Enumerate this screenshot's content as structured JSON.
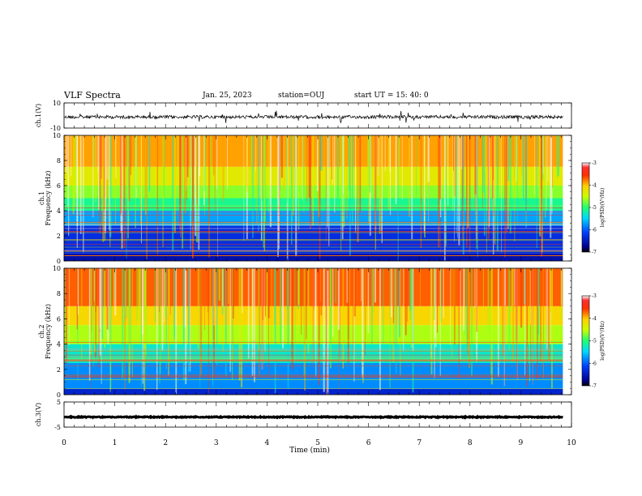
{
  "header": {
    "title": "VLF Spectra",
    "date": "Jan. 25, 2023",
    "station": "station=OUJ",
    "start": "start UT =   15: 40: 0"
  },
  "chart_data": [
    {
      "type": "line",
      "panel": "ch1-waveform",
      "ylabel": "ch.1(V)",
      "ylim": [
        -10,
        10
      ],
      "yticks": [
        "10",
        "-10"
      ],
      "xlim": [
        0,
        10
      ],
      "data_extent_min": 9.83,
      "baseline_value": -1.2,
      "color": "#000000"
    },
    {
      "type": "heatmap",
      "panel": "ch1-spectrogram",
      "ylabel": "ch.1",
      "ylabel2": "Frequency (kHz)",
      "ylim": [
        0,
        10
      ],
      "yticks": [
        "0",
        "2",
        "4",
        "6",
        "8",
        "10"
      ],
      "xlim": [
        0,
        10
      ],
      "data_extent_min": 9.83,
      "colorbar": {
        "label": "log(PSD)(V²/Hz)",
        "range": [
          -7,
          -3
        ],
        "ticks": [
          "-3",
          "-4",
          "-5",
          "-6",
          "-7"
        ]
      },
      "bands_khz": [
        {
          "from": 0,
          "to": 0.6,
          "level": -6.6
        },
        {
          "from": 0.6,
          "to": 2.8,
          "level": -6.3
        },
        {
          "from": 2.8,
          "to": 4.0,
          "level": -5.7
        },
        {
          "from": 4.0,
          "to": 5.0,
          "level": -5.1
        },
        {
          "from": 5.0,
          "to": 6.0,
          "level": -4.7
        },
        {
          "from": 6.0,
          "to": 7.5,
          "level": -4.3
        },
        {
          "from": 7.5,
          "to": 10,
          "level": -3.9
        }
      ]
    },
    {
      "type": "heatmap",
      "panel": "ch2-spectrogram",
      "ylabel": "ch.2",
      "ylabel2": "Frequency (kHz)",
      "ylim": [
        0,
        10
      ],
      "yticks": [
        "0",
        "2",
        "4",
        "6",
        "8",
        "10"
      ],
      "xlim": [
        0,
        10
      ],
      "data_extent_min": 9.83,
      "colorbar": {
        "label": "log(PSD)(V²/Hz)",
        "range": [
          -7,
          -3
        ],
        "ticks": [
          "-3",
          "-4",
          "-5",
          "-6",
          "-7"
        ]
      },
      "bands_khz": [
        {
          "from": 0,
          "to": 0.5,
          "level": -6.4
        },
        {
          "from": 0.5,
          "to": 2.5,
          "level": -5.8
        },
        {
          "from": 2.5,
          "to": 4.0,
          "level": -5.3
        },
        {
          "from": 4.0,
          "to": 5.5,
          "level": -4.6
        },
        {
          "from": 5.5,
          "to": 7.0,
          "level": -4.1
        },
        {
          "from": 7.0,
          "to": 10,
          "level": -3.7
        }
      ]
    },
    {
      "type": "line",
      "panel": "ch3-waveform",
      "ylabel": "ch.3(V)",
      "ylim": [
        -5,
        5
      ],
      "yticks": [
        "5",
        "-5"
      ],
      "xlim": [
        0,
        10
      ],
      "xlabel": "Time (min)",
      "xticks": [
        "0",
        "1",
        "2",
        "3",
        "4",
        "5",
        "6",
        "7",
        "8",
        "9",
        "10"
      ],
      "data_extent_min": 9.83,
      "baseline_value": -1.0,
      "color": "#000000"
    }
  ]
}
